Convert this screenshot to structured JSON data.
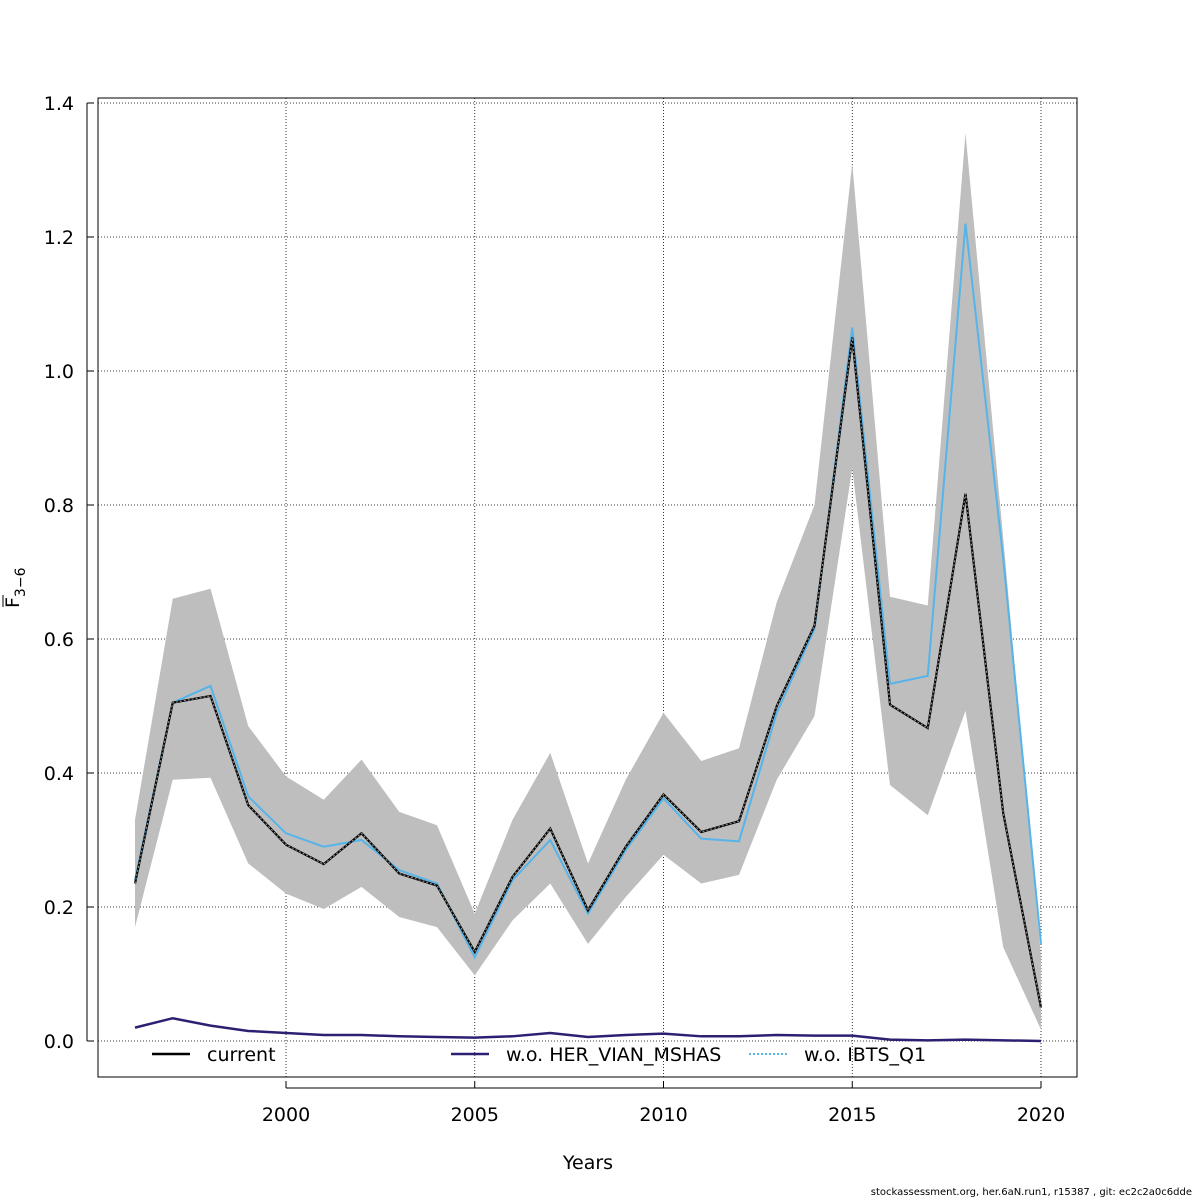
{
  "chart_data": {
    "type": "line",
    "title": "",
    "xlabel": "Years",
    "ylabel": "F",
    "ylabel_subscript": "3−6",
    "xlim": [
      1995,
      2021
    ],
    "ylim": [
      0,
      1.4
    ],
    "xticks": [
      2000,
      2005,
      2010,
      2015,
      2020
    ],
    "xtick_labels": [
      "2000",
      "2005",
      "2010",
      "2015",
      "2020"
    ],
    "yticks": [
      0.0,
      0.2,
      0.4,
      0.6,
      0.8,
      1.0,
      1.2,
      1.4
    ],
    "ytick_labels": [
      "0.0",
      "0.2",
      "0.4",
      "0.6",
      "0.8",
      "1.0",
      "1.2",
      "1.4"
    ],
    "grid": true,
    "x": [
      1996,
      1997,
      1998,
      1999,
      2000,
      2001,
      2002,
      2003,
      2004,
      2005,
      2006,
      2007,
      2008,
      2009,
      2010,
      2011,
      2012,
      2013,
      2014,
      2015,
      2016,
      2017,
      2018,
      2019,
      2020
    ],
    "confidence_band": {
      "name": "current 95% CI",
      "color": "#bebebe",
      "lower": [
        0.17,
        0.39,
        0.393,
        0.265,
        0.22,
        0.197,
        0.23,
        0.185,
        0.17,
        0.098,
        0.18,
        0.235,
        0.145,
        0.215,
        0.278,
        0.235,
        0.248,
        0.39,
        0.485,
        0.855,
        0.382,
        0.337,
        0.493,
        0.14,
        0.017
      ],
      "upper": [
        0.33,
        0.66,
        0.675,
        0.47,
        0.395,
        0.36,
        0.42,
        0.342,
        0.322,
        0.19,
        0.33,
        0.43,
        0.265,
        0.39,
        0.49,
        0.418,
        0.437,
        0.655,
        0.8,
        1.31,
        0.663,
        0.65,
        1.355,
        0.75,
        0.125
      ]
    },
    "series": [
      {
        "name": "current",
        "color": "#000000",
        "style": "solid",
        "values": [
          0.235,
          0.505,
          0.515,
          0.352,
          0.293,
          0.264,
          0.31,
          0.25,
          0.232,
          0.133,
          0.245,
          0.317,
          0.195,
          0.29,
          0.368,
          0.312,
          0.328,
          0.5,
          0.62,
          1.05,
          0.502,
          0.467,
          0.817,
          0.34,
          0.05
        ]
      },
      {
        "name": "w.o. HER_VIAN_MSHAS",
        "color": "#2d2073",
        "style": "solid",
        "values": [
          0.02,
          0.034,
          0.023,
          0.015,
          0.012,
          0.009,
          0.009,
          0.007,
          0.006,
          0.005,
          0.007,
          0.012,
          0.006,
          0.009,
          0.011,
          0.007,
          0.007,
          0.009,
          0.008,
          0.008,
          0.002,
          0.001,
          0.002,
          0.001,
          0.0
        ]
      },
      {
        "name": "w.o. IBTS_Q1",
        "color": "#56b4e9",
        "style": "dotted",
        "values": [
          0.24,
          0.505,
          0.53,
          0.365,
          0.31,
          0.29,
          0.3,
          0.255,
          0.235,
          0.125,
          0.24,
          0.3,
          0.19,
          0.285,
          0.362,
          0.302,
          0.298,
          0.49,
          0.615,
          1.065,
          0.533,
          0.545,
          1.22,
          0.72,
          0.145
        ]
      }
    ],
    "legend": {
      "position": "bottom",
      "items": [
        "current",
        "w.o. HER_VIAN_MSHAS",
        "w.o. IBTS_Q1"
      ]
    }
  },
  "footer": {
    "note": "stockassessment.org, her.6aN.run1, r15387 , git: ec2c2a0c6dde"
  }
}
